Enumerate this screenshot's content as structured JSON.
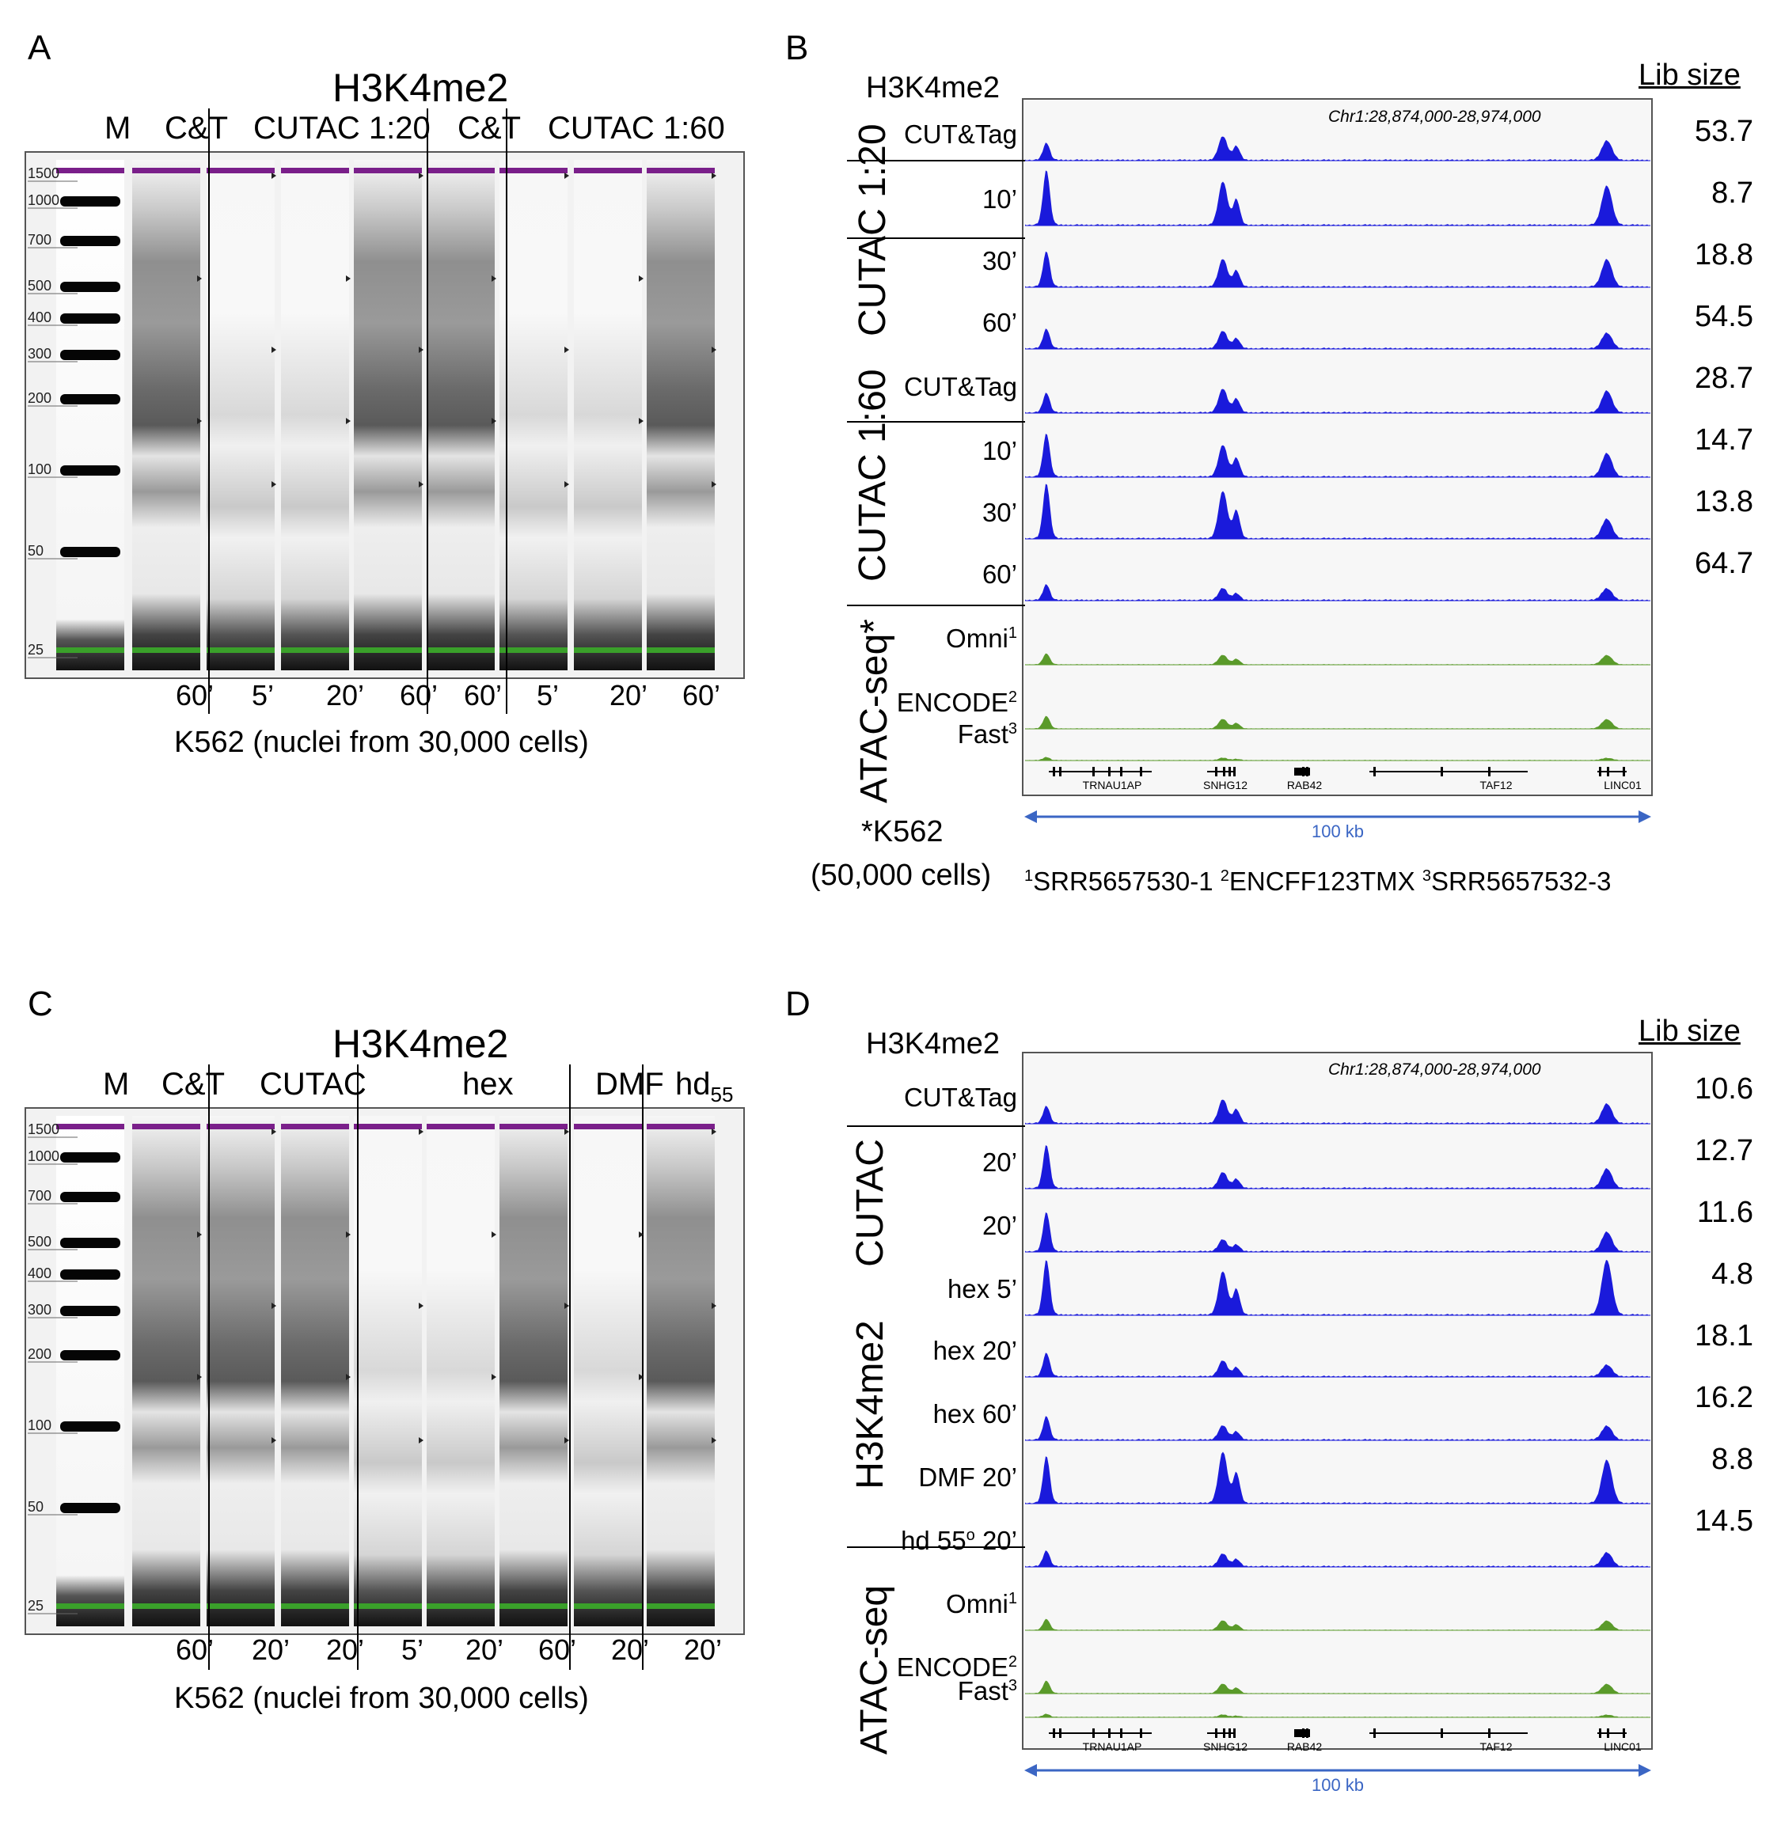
{
  "panel_a": {
    "letter": "A",
    "title": "H3K4me2",
    "lane_headers": [
      "M",
      "C&T",
      "CUTAC 1:20",
      "C&T",
      "CUTAC 1:60"
    ],
    "ladder_ticks": [
      "1500",
      "1000",
      "700",
      "500",
      "400",
      "300",
      "200",
      "100",
      "50",
      "25"
    ],
    "bottom_times": [
      "60’",
      "5’",
      "20’",
      "60’",
      "60’",
      "5’",
      "20’",
      "60’"
    ],
    "caption": "K562 (nuclei from 30,000 cells)"
  },
  "panel_b": {
    "letter": "B",
    "lib_header": "Lib size",
    "locus": "Chr1:28,874,000-28,974,000",
    "track_title": "H3K4me2",
    "tracks": [
      {
        "label": "CUT&Tag",
        "lib": "53.7"
      },
      {
        "label": "10’",
        "lib": "8.7"
      },
      {
        "label": "30’",
        "lib": "18.8"
      },
      {
        "label": "60’",
        "lib": "54.5"
      },
      {
        "label": "CUT&Tag",
        "lib": "28.7"
      },
      {
        "label": "10’",
        "lib": "14.7"
      },
      {
        "label": "30’",
        "lib": "13.8"
      },
      {
        "label": "60’",
        "lib": "64.7"
      },
      {
        "label": "Omni",
        "sup": "1"
      },
      {
        "label": "ENCODE",
        "sup": "2"
      },
      {
        "label": "Fast",
        "sup": "3"
      }
    ],
    "groups": [
      "CUTAC 1:20",
      "CUTAC 1:60",
      "ATAC-seq*"
    ],
    "genes": [
      "TRNAU1AP",
      "SNHG12",
      "RAB42",
      "TAF12",
      "LINC01"
    ],
    "scale": "100 kb",
    "footnote_cells": "*K562",
    "footnote_cells2": "(50,000 cells)",
    "footnote_ids": [
      {
        "sup": "1",
        "id": "SRR5657530-1"
      },
      {
        "sup": "2",
        "id": "ENCFF123TMX"
      },
      {
        "sup": "3",
        "id": "SRR5657532-3"
      }
    ]
  },
  "panel_c": {
    "letter": "C",
    "title": "H3K4me2",
    "lane_headers": [
      "M",
      "C&T",
      "CUTAC",
      "hex",
      "DMF",
      "hd",
      "55"
    ],
    "ladder_ticks": [
      "1500",
      "1000",
      "700",
      "500",
      "400",
      "300",
      "200",
      "100",
      "50",
      "25"
    ],
    "bottom_times": [
      "60’",
      "20’",
      "20’",
      "5’",
      "20’",
      "60’",
      "20’",
      "20’"
    ],
    "caption": "K562 (nuclei from 30,000 cells)"
  },
  "panel_d": {
    "letter": "D",
    "lib_header": "Lib size",
    "locus": "Chr1:28,874,000-28,974,000",
    "track_title": "H3K4me2",
    "tracks": [
      {
        "label": "CUT&Tag",
        "lib": "10.6"
      },
      {
        "label": "20’",
        "lib": "12.7"
      },
      {
        "label": "20’",
        "lib": "11.6"
      },
      {
        "label": "hex  5’",
        "lib": "4.8"
      },
      {
        "label": "hex 20’",
        "lib": "18.1"
      },
      {
        "label": "hex 60’",
        "lib": "16.2"
      },
      {
        "label": "DMF 20’",
        "lib": "8.8"
      },
      {
        "label": "hd 55",
        "sup": "o",
        "tail": " 20’",
        "lib": "14.5"
      },
      {
        "label": "Omni",
        "sup": "1"
      },
      {
        "label": "ENCODE",
        "sup": "2"
      },
      {
        "label": "Fast",
        "sup": "3"
      }
    ],
    "groups": [
      "CUTAC",
      "H3K4me2",
      "ATAC-seq"
    ],
    "genes": [
      "TRNAU1AP",
      "SNHG12",
      "RAB42",
      "TAF12",
      "LINC01"
    ],
    "scale": "100 kb"
  },
  "colors": {
    "peak_blue": "#1a1adb",
    "peak_green": "#5a9a2a",
    "marker_purple": "#7a1f8a",
    "marker_green": "#3aa02a",
    "gel_bg": "#f2f2f2",
    "scale_blue": "#3b66c4"
  }
}
